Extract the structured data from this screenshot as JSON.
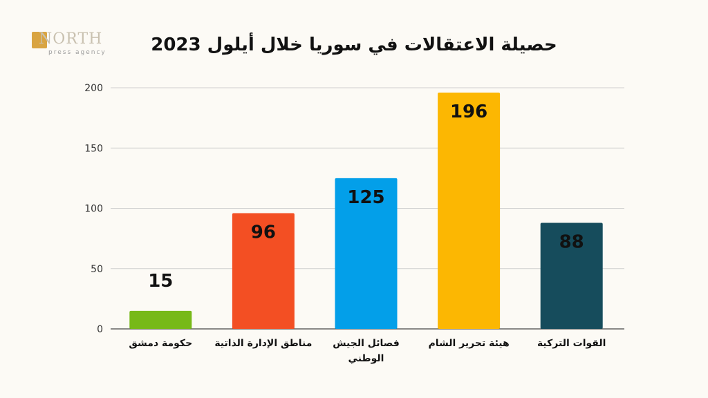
{
  "logo": {
    "word": "NORTH",
    "sub": "press agency"
  },
  "chart_data": {
    "type": "bar",
    "title": "حصيلة الاعتقالات  في سوريا خلال أيلول 2023",
    "categories": [
      "حكومة دمشق",
      "مناطق الإدارة الذاتية",
      "فصائل الجيش الوطني",
      "هيئة تحرير الشام",
      "القوات التركية"
    ],
    "values": [
      15,
      96,
      125,
      196,
      88
    ],
    "colors": [
      "#77b918",
      "#f34f23",
      "#039fe9",
      "#fcb702",
      "#164c5c"
    ],
    "ylim": [
      0,
      200
    ],
    "yticks": [
      0,
      50,
      100,
      150,
      200
    ],
    "grid": true,
    "xlabel": "",
    "ylabel": ""
  }
}
